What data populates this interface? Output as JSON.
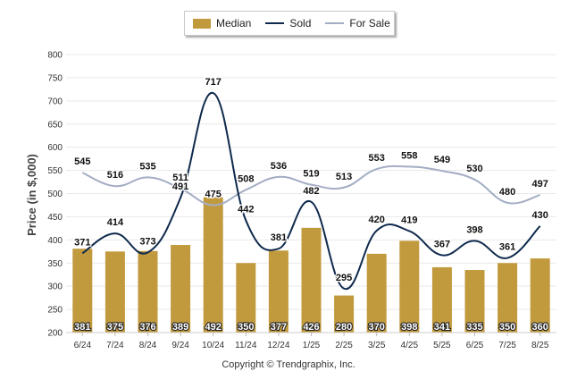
{
  "legend": {
    "median_label": "Median",
    "sold_label": "Sold",
    "for_sale_label": "For Sale"
  },
  "copyright": "Copyright © Trendgraphix, Inc.",
  "colors": {
    "median": "#c29a3e",
    "sold": "#0f2a4d",
    "for_sale": "#a3adc4",
    "grid": "#e9e9e9"
  },
  "chart_data": {
    "type": "bar",
    "ylabel": "Price (in $,000)",
    "xlabel": "",
    "ylim": [
      200,
      800
    ],
    "yticks": [
      200,
      250,
      300,
      350,
      400,
      450,
      500,
      550,
      600,
      650,
      700,
      750,
      800
    ],
    "categories": [
      "6/24",
      "7/24",
      "8/24",
      "9/24",
      "10/24",
      "11/24",
      "12/24",
      "1/25",
      "2/25",
      "3/25",
      "4/25",
      "5/25",
      "6/25",
      "7/25",
      "8/25"
    ],
    "series": [
      {
        "name": "Median",
        "kind": "bar",
        "values": [
          381,
          375,
          376,
          389,
          492,
          350,
          377,
          426,
          280,
          370,
          398,
          341,
          335,
          350,
          360
        ]
      },
      {
        "name": "Sold",
        "kind": "line",
        "values": [
          371,
          414,
          373,
          491,
          717,
          442,
          381,
          482,
          295,
          420,
          419,
          367,
          398,
          361,
          430
        ]
      },
      {
        "name": "For Sale",
        "kind": "line",
        "values": [
          545,
          516,
          535,
          511,
          475,
          508,
          536,
          519,
          513,
          553,
          558,
          549,
          530,
          480,
          497
        ]
      }
    ]
  }
}
